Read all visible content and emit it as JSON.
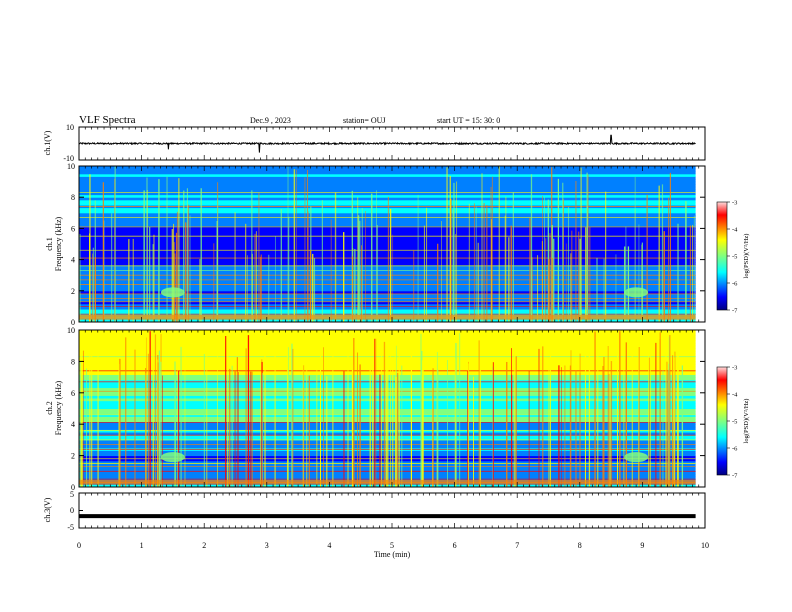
{
  "header": {
    "title": "VLF Spectra",
    "date": "Dec.9 , 2023",
    "station": "station= OUJ",
    "start": "start UT = 15: 30: 0"
  },
  "colors": {
    "spectrogram_colormap": [
      "#00007f",
      "#0000ff",
      "#0080ff",
      "#00ffff",
      "#80ff80",
      "#ffff00",
      "#ff8000",
      "#ff0000",
      "#ffdddd"
    ],
    "trace": "#000000"
  },
  "chart_data": [
    {
      "type": "line",
      "panel": "ch1-waveform",
      "ylabel": "ch.1(V)",
      "ylim": [
        -10,
        10
      ],
      "yticks": [
        "10",
        "-10"
      ],
      "series": [
        {
          "x": [
            0,
            1.43,
            2.88,
            8.5,
            9.85
          ],
          "y": [
            0,
            -1.5,
            -2,
            2,
            0
          ]
        }
      ]
    },
    {
      "type": "heatmap",
      "panel": "ch1-spectrogram",
      "ylabel": "ch.1 Frequency (kHz)",
      "ylim": [
        0,
        10
      ],
      "yticks": [
        "0",
        "2",
        "4",
        "6",
        "8",
        "10"
      ],
      "colorbar": {
        "label": "log(PSD)(V²/Hz)",
        "range": [
          -7,
          -3
        ],
        "ticks": [
          "-3",
          "-4",
          "-5",
          "-6",
          "-7"
        ]
      }
    },
    {
      "type": "heatmap",
      "panel": "ch2-spectrogram",
      "ylabel": "ch.2 Frequency (kHz)",
      "ylim": [
        0,
        10
      ],
      "yticks": [
        "0",
        "2",
        "4",
        "6",
        "8",
        "10"
      ],
      "colorbar": {
        "label": "log(PSD)(V²/Hz)",
        "range": [
          -7,
          -3
        ],
        "ticks": [
          "-3",
          "-4",
          "-5",
          "-6",
          "-7"
        ]
      }
    },
    {
      "type": "line",
      "panel": "ch3-waveform",
      "ylabel": "ch.3(V)",
      "ylim": [
        -5,
        5
      ],
      "yticks": [
        "5",
        "0",
        "-5"
      ],
      "series": [
        {
          "x": [
            0,
            9.85
          ],
          "y": [
            -1.6,
            -1.6
          ]
        }
      ]
    }
  ],
  "xaxis": {
    "label": "Time (min)",
    "range": [
      0,
      10
    ],
    "ticks": [
      "0",
      "1",
      "2",
      "3",
      "4",
      "5",
      "6",
      "7",
      "8",
      "9",
      "10"
    ]
  }
}
